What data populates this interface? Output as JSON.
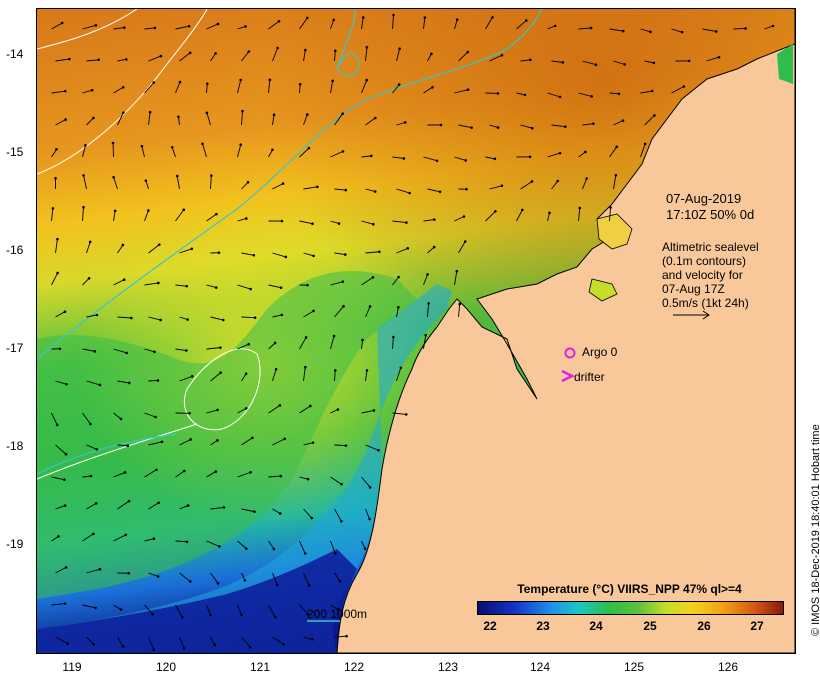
{
  "map": {
    "lat_labels": [
      "-14",
      "-15",
      "-16",
      "-17",
      "-18",
      "-19"
    ],
    "lon_labels": [
      "119",
      "120",
      "121",
      "122",
      "123",
      "124",
      "125",
      "126"
    ],
    "date_line1": "07-Aug-2019",
    "date_line2": "17:10Z  50% 0d",
    "altimetry_lines": [
      "Altimetric sealevel",
      "(0.1m contours)",
      "and velocity for",
      "07-Aug 17Z",
      "0.5m/s (1kt 24h)"
    ],
    "argo_label": "Argo 0",
    "drifter_label": "drifter",
    "scale_label": "200  1000m",
    "colors": {
      "land": "#f9c89a",
      "contour_isobath": "#39c6c6",
      "sealevel_contour": "#ffffff",
      "argo_marker": "#e020e0",
      "drifter_marker": "#e020e0"
    }
  },
  "colorbar": {
    "title": "Temperature (°C) VIIRS_NPP 47% ql>=4",
    "ticks": [
      "22",
      "23",
      "24",
      "25",
      "26",
      "27"
    ]
  },
  "credit": "© IMOS 18-Dec-2019 18:40:01 Hobart time"
}
